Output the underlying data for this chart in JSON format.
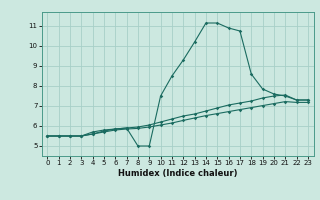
{
  "title": "",
  "xlabel": "Humidex (Indice chaleur)",
  "bg_color": "#cce8e0",
  "grid_color": "#a8cfc8",
  "line_color": "#1a6b60",
  "xlim": [
    -0.5,
    23.5
  ],
  "ylim": [
    4.5,
    11.7
  ],
  "xticks": [
    0,
    1,
    2,
    3,
    4,
    5,
    6,
    7,
    8,
    9,
    10,
    11,
    12,
    13,
    14,
    15,
    16,
    17,
    18,
    19,
    20,
    21,
    22,
    23
  ],
  "yticks": [
    5,
    6,
    7,
    8,
    9,
    10,
    11
  ],
  "line1_x": [
    0,
    1,
    2,
    3,
    4,
    5,
    6,
    7,
    8,
    9,
    10,
    11,
    12,
    13,
    14,
    15,
    16,
    17,
    18,
    19,
    20,
    21,
    22,
    23
  ],
  "line1_y": [
    5.5,
    5.5,
    5.5,
    5.5,
    5.7,
    5.8,
    5.85,
    5.9,
    5.0,
    5.0,
    7.5,
    8.5,
    9.3,
    10.2,
    11.15,
    11.15,
    10.9,
    10.75,
    8.6,
    7.85,
    7.6,
    7.5,
    7.3,
    7.3
  ],
  "line2_x": [
    0,
    1,
    2,
    3,
    4,
    5,
    6,
    7,
    8,
    9,
    10,
    11,
    12,
    13,
    14,
    15,
    16,
    17,
    18,
    19,
    20,
    21,
    22,
    23
  ],
  "line2_y": [
    5.5,
    5.5,
    5.5,
    5.5,
    5.6,
    5.75,
    5.85,
    5.9,
    5.95,
    6.05,
    6.2,
    6.35,
    6.5,
    6.6,
    6.75,
    6.9,
    7.05,
    7.15,
    7.25,
    7.4,
    7.5,
    7.55,
    7.3,
    7.3
  ],
  "line3_x": [
    0,
    1,
    2,
    3,
    4,
    5,
    6,
    7,
    8,
    9,
    10,
    11,
    12,
    13,
    14,
    15,
    16,
    17,
    18,
    19,
    20,
    21,
    22,
    23
  ],
  "line3_y": [
    5.5,
    5.5,
    5.5,
    5.5,
    5.6,
    5.7,
    5.8,
    5.85,
    5.88,
    5.95,
    6.05,
    6.15,
    6.28,
    6.4,
    6.52,
    6.62,
    6.72,
    6.82,
    6.92,
    7.02,
    7.12,
    7.22,
    7.18,
    7.18
  ]
}
